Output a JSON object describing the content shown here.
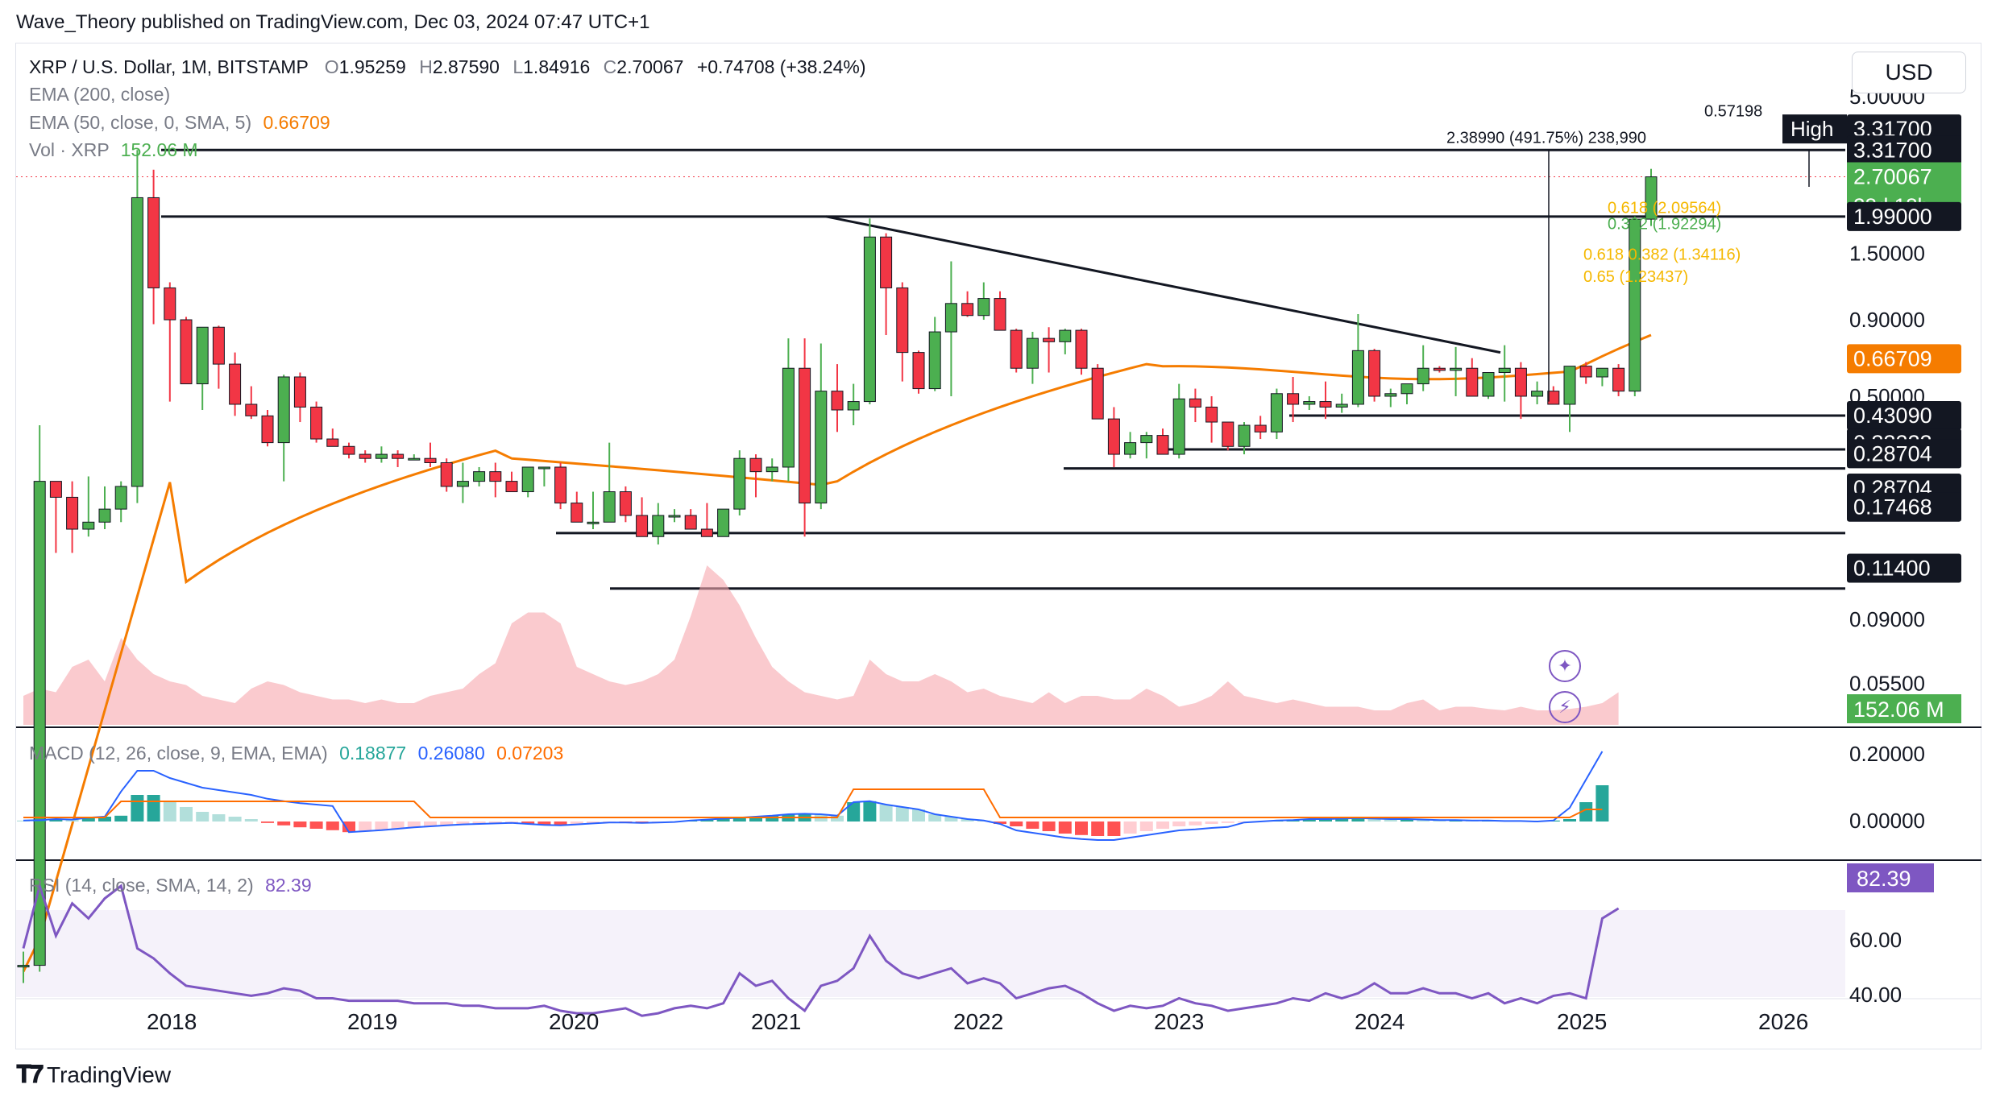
{
  "header": {
    "published": "Wave_Theory published on TradingView.com, Dec 03, 2024 07:47 UTC+1"
  },
  "currency_button": "USD",
  "legend": {
    "symbol": "XRP / U.S. Dollar, 1M, BITSTAMP",
    "o_label": "O",
    "o": "1.95259",
    "h_label": "H",
    "h": "2.87590",
    "l_label": "L",
    "l": "1.84916",
    "c_label": "C",
    "c": "2.70067",
    "chg": "+0.74708 (+38.24%)",
    "ema200": "EMA (200, close)",
    "ema50": "EMA (50, close, 0, SMA, 5)",
    "ema50_value": "0.66709",
    "vol": "Vol · XRP",
    "vol_value": "152.06 M",
    "macd": "MACD (12, 26, close, 9, EMA, EMA)",
    "macd_v1": "0.18877",
    "macd_v2": "0.26080",
    "macd_v3": "0.07203",
    "rsi": "RSI (14, close, SMA, 14, 2)",
    "rsi_value": "82.39"
  },
  "annotations": {
    "measure": "2.38990 (491.75%) 238,990",
    "fib1": "0.618 (2.09564)",
    "fib2": "0.382 (1.92294)",
    "fib3": "0.618 0.382 (1.34116)",
    "fib4": "0.65 (1.23437)",
    "fib_top": "0.57198"
  },
  "price_labels": {
    "high_tag": "High",
    "high": "3.31700",
    "h2": "3.31700",
    "current": "2.70067",
    "countdown": "28d 18h",
    "r199": "1.99000",
    "ema": "0.66709",
    "s1": "0.43090",
    "s2": "0.33233",
    "s3": "0.28704",
    "s4": "0.28704",
    "s5": "0.17468",
    "s6": "0.11400",
    "vol": "152.06 M",
    "macd_label": "82.39"
  },
  "axis_ticks": {
    "price": [
      "5.00000",
      "1.50000",
      "0.90000",
      "0.50000",
      "0.09000",
      "0.05500"
    ],
    "macd": [
      "0.20000",
      "0.00000"
    ],
    "rsi": [
      "60.00",
      "40.00"
    ],
    "years": [
      "2018",
      "2019",
      "2020",
      "2021",
      "2022",
      "2023",
      "2024",
      "2025",
      "2026"
    ]
  },
  "footer": {
    "brand": "TradingView"
  },
  "colors": {
    "up": "#4caf50",
    "down": "#f23645",
    "ema": "#f57c00",
    "macd": "#2962ff",
    "signal": "#ff6d00",
    "rsi": "#7e57c2",
    "fib_gold": "#f5b800",
    "fib_green": "#4caf50"
  },
  "chart_data": {
    "type": "candlestick",
    "title": "XRP / U.S. Dollar, 1M, BITSTAMP",
    "scale": "log",
    "horizontal_levels": [
      3.317,
      1.99,
      0.4309,
      0.33233,
      0.28704,
      0.17468,
      0.114
    ],
    "candles_ohlc_approx": [
      [
        0.0063,
        0.007,
        0.0055,
        0.0063
      ],
      [
        0.0063,
        0.4,
        0.006,
        0.26
      ],
      [
        0.26,
        0.26,
        0.15,
        0.23
      ],
      [
        0.23,
        0.26,
        0.15,
        0.18
      ],
      [
        0.18,
        0.27,
        0.17,
        0.19
      ],
      [
        0.19,
        0.25,
        0.18,
        0.21
      ],
      [
        0.21,
        0.26,
        0.19,
        0.25
      ],
      [
        0.25,
        3.317,
        0.22,
        2.3
      ],
      [
        2.3,
        2.85,
        0.87,
        1.15
      ],
      [
        1.15,
        1.2,
        0.48,
        0.9
      ],
      [
        0.9,
        0.92,
        0.58,
        0.55
      ],
      [
        0.55,
        0.85,
        0.45,
        0.85
      ],
      [
        0.85,
        0.86,
        0.53,
        0.64
      ],
      [
        0.64,
        0.7,
        0.43,
        0.47
      ],
      [
        0.47,
        0.54,
        0.42,
        0.43
      ],
      [
        0.43,
        0.45,
        0.34,
        0.35
      ],
      [
        0.35,
        0.59,
        0.26,
        0.58
      ],
      [
        0.58,
        0.6,
        0.41,
        0.46
      ],
      [
        0.46,
        0.48,
        0.35,
        0.36
      ],
      [
        0.36,
        0.39,
        0.34,
        0.34
      ],
      [
        0.34,
        0.35,
        0.31,
        0.32
      ],
      [
        0.32,
        0.33,
        0.3,
        0.31
      ],
      [
        0.31,
        0.34,
        0.3,
        0.32
      ],
      [
        0.32,
        0.33,
        0.29,
        0.31
      ],
      [
        0.31,
        0.32,
        0.31,
        0.31
      ],
      [
        0.31,
        0.35,
        0.29,
        0.3
      ],
      [
        0.3,
        0.31,
        0.24,
        0.25
      ],
      [
        0.25,
        0.3,
        0.22,
        0.26
      ],
      [
        0.26,
        0.29,
        0.25,
        0.28
      ],
      [
        0.28,
        0.3,
        0.23,
        0.26
      ],
      [
        0.26,
        0.28,
        0.24,
        0.24
      ],
      [
        0.24,
        0.29,
        0.23,
        0.29
      ],
      [
        0.29,
        0.29,
        0.25,
        0.29
      ],
      [
        0.29,
        0.3,
        0.21,
        0.22
      ],
      [
        0.22,
        0.24,
        0.2,
        0.19
      ],
      [
        0.19,
        0.24,
        0.18,
        0.19
      ],
      [
        0.19,
        0.35,
        0.19,
        0.24
      ],
      [
        0.24,
        0.25,
        0.19,
        0.2
      ],
      [
        0.2,
        0.23,
        0.17,
        0.17
      ],
      [
        0.17,
        0.22,
        0.16,
        0.2
      ],
      [
        0.2,
        0.21,
        0.19,
        0.2
      ],
      [
        0.2,
        0.21,
        0.18,
        0.18
      ],
      [
        0.18,
        0.22,
        0.17,
        0.17
      ],
      [
        0.17,
        0.21,
        0.17,
        0.21
      ],
      [
        0.21,
        0.33,
        0.2,
        0.31
      ],
      [
        0.31,
        0.32,
        0.23,
        0.28
      ],
      [
        0.28,
        0.31,
        0.26,
        0.29
      ],
      [
        0.29,
        0.78,
        0.26,
        0.62
      ],
      [
        0.62,
        0.78,
        0.17,
        0.22
      ],
      [
        0.22,
        0.75,
        0.21,
        0.52
      ],
      [
        0.52,
        0.64,
        0.38,
        0.45
      ],
      [
        0.45,
        0.55,
        0.4,
        0.48
      ],
      [
        0.48,
        1.96,
        0.47,
        1.7
      ],
      [
        1.7,
        1.75,
        0.8,
        1.15
      ],
      [
        1.15,
        1.2,
        0.56,
        0.7
      ],
      [
        0.7,
        0.71,
        0.51,
        0.53
      ],
      [
        0.53,
        0.92,
        0.52,
        0.82
      ],
      [
        0.82,
        1.41,
        0.5,
        1.02
      ],
      [
        1.02,
        1.12,
        0.92,
        0.93
      ],
      [
        0.93,
        1.2,
        0.9,
        1.06
      ],
      [
        1.06,
        1.12,
        0.85,
        0.83
      ],
      [
        0.83,
        0.84,
        0.6,
        0.62
      ],
      [
        0.62,
        0.82,
        0.55,
        0.78
      ],
      [
        0.78,
        0.85,
        0.6,
        0.76
      ],
      [
        0.76,
        0.84,
        0.69,
        0.83
      ],
      [
        0.83,
        0.84,
        0.59,
        0.62
      ],
      [
        0.62,
        0.64,
        0.5,
        0.42
      ],
      [
        0.42,
        0.46,
        0.29,
        0.32
      ],
      [
        0.32,
        0.38,
        0.31,
        0.35
      ],
      [
        0.35,
        0.38,
        0.31,
        0.37
      ],
      [
        0.37,
        0.39,
        0.32,
        0.32
      ],
      [
        0.32,
        0.55,
        0.31,
        0.49
      ],
      [
        0.49,
        0.53,
        0.41,
        0.46
      ],
      [
        0.46,
        0.5,
        0.35,
        0.41
      ],
      [
        0.41,
        0.41,
        0.33,
        0.34
      ],
      [
        0.34,
        0.41,
        0.32,
        0.4
      ],
      [
        0.4,
        0.43,
        0.36,
        0.38
      ],
      [
        0.38,
        0.53,
        0.36,
        0.51
      ],
      [
        0.51,
        0.58,
        0.41,
        0.47
      ],
      [
        0.47,
        0.5,
        0.45,
        0.48
      ],
      [
        0.48,
        0.56,
        0.42,
        0.46
      ],
      [
        0.46,
        0.51,
        0.44,
        0.47
      ],
      [
        0.47,
        0.94,
        0.46,
        0.71
      ],
      [
        0.71,
        0.72,
        0.48,
        0.5
      ],
      [
        0.5,
        0.53,
        0.46,
        0.51
      ],
      [
        0.51,
        0.53,
        0.47,
        0.55
      ],
      [
        0.55,
        0.74,
        0.52,
        0.62
      ],
      [
        0.62,
        0.63,
        0.6,
        0.61
      ],
      [
        0.61,
        0.73,
        0.5,
        0.62
      ],
      [
        0.62,
        0.67,
        0.52,
        0.5
      ],
      [
        0.5,
        0.53,
        0.49,
        0.6
      ],
      [
        0.6,
        0.74,
        0.48,
        0.62
      ],
      [
        0.62,
        0.65,
        0.42,
        0.5
      ],
      [
        0.5,
        0.56,
        0.47,
        0.52
      ],
      [
        0.52,
        0.54,
        0.48,
        0.47
      ],
      [
        0.47,
        0.58,
        0.38,
        0.63
      ],
      [
        0.63,
        0.65,
        0.55,
        0.58
      ],
      [
        0.58,
        0.62,
        0.54,
        0.62
      ],
      [
        0.62,
        0.64,
        0.5,
        0.52
      ],
      [
        0.52,
        1.99,
        0.5,
        1.95
      ],
      [
        1.95,
        2.87,
        1.85,
        2.7
      ]
    ],
    "ylim": [
      0.04,
      5.0
    ],
    "x_range": [
      "2017-04",
      "2026-09"
    ]
  }
}
